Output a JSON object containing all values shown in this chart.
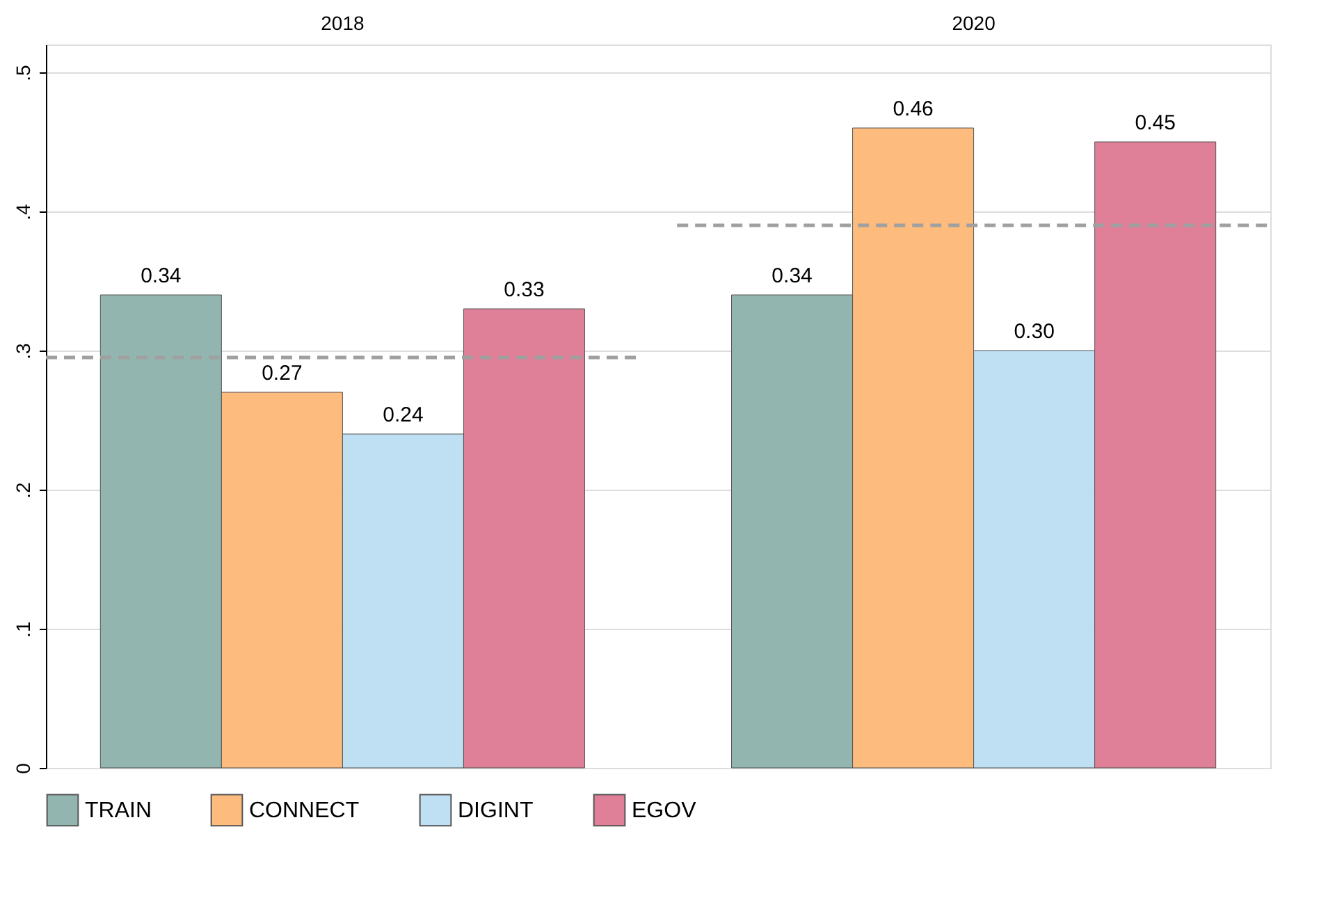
{
  "chart_data": {
    "type": "bar",
    "categories": [
      "2018",
      "2020"
    ],
    "ylim": [
      0,
      0.52
    ],
    "yticks": [
      0,
      {
        "value": 0.1,
        "label": ".1"
      },
      {
        "value": 0.2,
        "label": ".2"
      },
      {
        "value": 0.3,
        "label": ".3"
      },
      {
        "value": 0.4,
        "label": ".4"
      },
      {
        "value": 0.5,
        "label": ".5"
      }
    ],
    "grid": "y",
    "legend": "bottom",
    "series": [
      {
        "name": "TRAIN",
        "color": "#93b5b0",
        "values": [
          0.34,
          0.34
        ],
        "value_labels": [
          "0.34",
          "0.34"
        ]
      },
      {
        "name": "CONNECT",
        "color": "#fdbb7e",
        "values": [
          0.27,
          0.46
        ],
        "value_labels": [
          "0.27",
          "0.46"
        ]
      },
      {
        "name": "DIGINT",
        "color": "#bfe0f3",
        "values": [
          0.24,
          0.3
        ],
        "value_labels": [
          "0.24",
          "0.30"
        ]
      },
      {
        "name": "EGOV",
        "color": "#e07f98",
        "values": [
          0.33,
          0.45
        ],
        "value_labels": [
          "0.33",
          "0.45"
        ]
      }
    ],
    "ref_lines": [
      {
        "axis": "y",
        "value": 0.295,
        "color": "#a0a0a0",
        "line_style": "dashed"
      },
      {
        "axis": "y",
        "value": 0.39,
        "color": "#a0a0a0",
        "line_style": "dashed"
      }
    ]
  }
}
